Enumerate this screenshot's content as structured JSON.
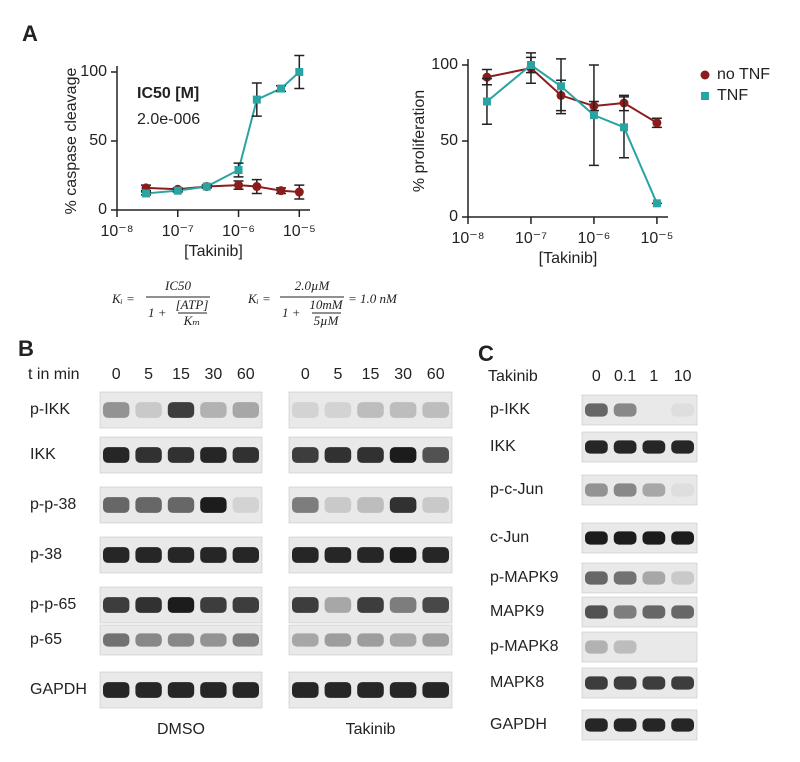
{
  "panel_labels": [
    "A",
    "B",
    "C"
  ],
  "chart_data": [
    {
      "type": "line",
      "xscale": "log",
      "xlabel": "[Takinib]",
      "ylabel": "% caspase cleavage",
      "annotations": [
        "IC50 [M]",
        "2.0e-006"
      ],
      "x": [
        3e-08,
        1e-07,
        3e-07,
        1e-06,
        2e-06,
        5e-06,
        1e-05
      ],
      "series": [
        {
          "color": "#8b1c1c",
          "marker": "circle",
          "values": [
            16,
            15,
            17,
            18,
            17,
            14,
            13
          ],
          "errors": [
            2,
            1,
            1,
            3,
            5,
            2,
            5
          ]
        },
        {
          "color": "#2aa3a3",
          "marker": "square",
          "values": [
            12,
            14,
            17,
            29,
            80,
            88,
            100
          ],
          "errors": [
            1,
            1,
            1,
            5,
            12,
            2,
            12
          ]
        }
      ],
      "xlim": [
        1e-08,
        1.5e-05
      ],
      "xticks": [
        {
          "value": 1e-08,
          "label": "10⁻⁸"
        },
        {
          "value": 1e-07,
          "label": "10⁻⁷"
        },
        {
          "value": 1e-06,
          "label": "10⁻⁶"
        },
        {
          "value": 1e-05,
          "label": "10⁻⁵"
        }
      ],
      "ylim": [
        0,
        100
      ],
      "yticks": [
        0,
        50,
        100
      ]
    },
    {
      "type": "line",
      "xscale": "log",
      "xlabel": "[Takinib]",
      "ylabel": "% proliferation",
      "legend": "upper right",
      "x": [
        2e-08,
        1e-07,
        3e-07,
        1e-06,
        3e-06,
        1e-05
      ],
      "series": [
        {
          "name": "no TNF",
          "color": "#8b1c1c",
          "marker": "circle",
          "values": [
            92,
            98,
            80,
            73,
            75,
            62
          ],
          "errors": [
            5,
            10,
            10,
            3,
            5,
            3
          ]
        },
        {
          "name": "TNF",
          "color": "#2aa3a3",
          "marker": "square",
          "values": [
            76,
            100,
            86,
            67,
            59,
            9
          ],
          "errors": [
            15,
            5,
            18,
            33,
            20,
            0
          ]
        }
      ],
      "xlim": [
        1e-08,
        1.5e-05
      ],
      "xticks": [
        {
          "value": 1e-08,
          "label": "10⁻⁸"
        },
        {
          "value": 1e-07,
          "label": "10⁻⁷"
        },
        {
          "value": 1e-06,
          "label": "10⁻⁶"
        },
        {
          "value": 1e-05,
          "label": "10⁻⁵"
        }
      ],
      "ylim": [
        0,
        100
      ],
      "yticks": [
        0,
        50,
        100
      ]
    }
  ],
  "equations": [
    {
      "lhs": "Kᵢ =",
      "num": "IC50",
      "den_a": "1 +",
      "den_num": "[ATP]",
      "den_den": "Kₘ"
    },
    {
      "lhs": "Kᵢ =",
      "num": "2.0µM",
      "den_a": "1 +",
      "den_num": "10mM",
      "den_den": "5µM",
      "rhs": "= 1.0 nM"
    }
  ],
  "blot_b": {
    "header": "t in min",
    "times": [
      "0",
      "5",
      "15",
      "30",
      "60"
    ],
    "rows": [
      "p-IKK",
      "IKK",
      "p-p-38",
      "p-38",
      "p-p-65",
      "p-65",
      "GAPDH"
    ],
    "groups": [
      "DMSO",
      "Takinib"
    ]
  },
  "blot_c": {
    "header": "Takinib",
    "doses": [
      "0",
      "0.1",
      "1",
      "10"
    ],
    "rows": [
      "p-IKK",
      "IKK",
      "p-c-Jun",
      "c-Jun",
      "p-MAPK9",
      "MAPK9",
      "p-MAPK8",
      "MAPK8",
      "GAPDH"
    ]
  }
}
